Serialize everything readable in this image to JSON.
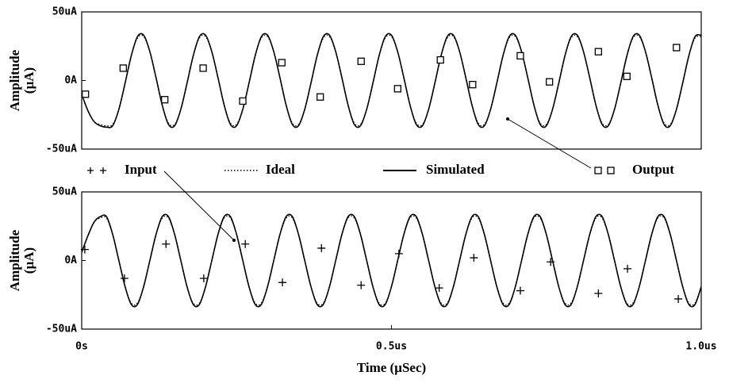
{
  "chart_data": [
    {
      "type": "line",
      "ylabel": [
        "Amplitude",
        "(µA)"
      ],
      "xlim": [
        0,
        1
      ],
      "ylim": [
        -50,
        50
      ],
      "yticks": [
        {
          "value": 50,
          "label": "50uA"
        },
        {
          "value": 0,
          "label": "0A"
        },
        {
          "value": -50,
          "label": "-50uA"
        }
      ],
      "x": [
        0,
        0.01,
        0.02,
        0.03,
        0.04,
        0.05,
        0.06,
        0.07,
        0.08,
        0.09,
        0.1,
        0.11,
        0.12,
        0.13,
        0.14,
        0.15,
        0.16,
        0.17,
        0.18,
        0.19,
        0.2,
        0.21,
        0.22,
        0.23,
        0.24,
        0.25,
        0.26,
        0.27,
        0.28,
        0.29,
        0.3,
        0.31,
        0.32,
        0.33,
        0.34,
        0.35,
        0.36,
        0.37,
        0.38,
        0.39,
        0.4,
        0.41,
        0.42,
        0.43,
        0.44,
        0.45,
        0.46,
        0.47,
        0.48,
        0.49,
        0.5,
        0.51,
        0.52,
        0.53,
        0.54,
        0.55,
        0.56,
        0.57,
        0.58,
        0.59,
        0.6,
        0.61,
        0.62,
        0.63,
        0.64,
        0.65,
        0.66,
        0.67,
        0.68,
        0.69,
        0.7,
        0.71,
        0.72,
        0.73,
        0.74,
        0.75,
        0.76,
        0.77,
        0.78,
        0.79,
        0.8,
        0.81,
        0.82,
        0.83,
        0.84,
        0.85,
        0.86,
        0.87,
        0.88,
        0.89,
        0.9,
        0.91,
        0.92,
        0.93,
        0.94,
        0.95,
        0.96,
        0.97,
        0.98,
        0.99,
        1
      ],
      "series": [
        {
          "name": "Ideal",
          "type": "line",
          "style": "dotted",
          "color": "#000000",
          "values": [
            -10,
            -22,
            -30,
            -32,
            -33,
            -32,
            -21,
            -2,
            18,
            31,
            32,
            21,
            2,
            -18,
            -31,
            -32,
            -21,
            -2,
            18,
            31,
            32,
            21,
            2,
            -18,
            -31,
            -32,
            -21,
            -2,
            18,
            31,
            32,
            21,
            2,
            -18,
            -31,
            -32,
            -21,
            -2,
            18,
            31,
            32,
            21,
            2,
            -18,
            -31,
            -32,
            -21,
            -2,
            18,
            31,
            32,
            21,
            2,
            -18,
            -31,
            -32,
            -21,
            -2,
            18,
            31,
            32,
            21,
            2,
            -18,
            -31,
            -32,
            -21,
            -2,
            18,
            31,
            32,
            21,
            2,
            -18,
            -31,
            -32,
            -21,
            -2,
            18,
            31,
            32,
            21,
            2,
            -18,
            -31,
            -32,
            -21,
            -2,
            18,
            31,
            32,
            21,
            2,
            -18,
            -31,
            -32,
            -21,
            -2,
            18,
            31,
            32
          ]
        },
        {
          "name": "Simulated",
          "type": "line",
          "style": "solid",
          "color": "#000000",
          "values": [
            -10,
            -22,
            -30,
            -33,
            -34,
            -33,
            -21,
            -2,
            18,
            32,
            33,
            21,
            2,
            -18,
            -32,
            -33,
            -21,
            -2,
            18,
            32,
            33,
            21,
            2,
            -18,
            -32,
            -33,
            -21,
            -2,
            18,
            32,
            33,
            21,
            2,
            -18,
            -32,
            -33,
            -21,
            -2,
            18,
            32,
            33,
            21,
            2,
            -18,
            -32,
            -33,
            -21,
            -2,
            18,
            32,
            33,
            21,
            2,
            -18,
            -32,
            -33,
            -21,
            -2,
            18,
            32,
            33,
            21,
            2,
            -18,
            -32,
            -33,
            -21,
            -2,
            18,
            32,
            33,
            21,
            2,
            -18,
            -32,
            -33,
            -21,
            -2,
            18,
            32,
            33,
            21,
            2,
            -18,
            -32,
            -33,
            -21,
            -2,
            18,
            32,
            33,
            21,
            2,
            -18,
            -32,
            -33,
            -21,
            -2,
            18,
            32,
            33
          ]
        },
        {
          "name": "Output",
          "type": "scatter",
          "marker": "square",
          "color": "#000000",
          "x": [
            0.006,
            0.067,
            0.134,
            0.196,
            0.26,
            0.323,
            0.385,
            0.451,
            0.51,
            0.579,
            0.631,
            0.708,
            0.755,
            0.834,
            0.88,
            0.96
          ],
          "values": [
            -10,
            9,
            -14,
            9,
            -15,
            13,
            -12,
            14,
            -6,
            15,
            -3,
            18,
            -1,
            21,
            3,
            24
          ]
        }
      ]
    },
    {
      "type": "line",
      "ylabel": [
        "Amplitude",
        "(µA)"
      ],
      "xlabel": "Time (µSec)",
      "xlim": [
        0,
        1
      ],
      "ylim": [
        -50,
        50
      ],
      "xticks": [
        {
          "value": 0,
          "label": "0s"
        },
        {
          "value": 0.5,
          "label": "0.5us"
        },
        {
          "value": 1,
          "label": "1.0us"
        }
      ],
      "yticks": [
        {
          "value": 50,
          "label": "50uA"
        },
        {
          "value": 0,
          "label": "0A"
        },
        {
          "value": -50,
          "label": "-50uA"
        }
      ],
      "x": [
        0,
        0.01,
        0.02,
        0.03,
        0.04,
        0.05,
        0.06,
        0.07,
        0.08,
        0.09,
        0.1,
        0.11,
        0.12,
        0.13,
        0.14,
        0.15,
        0.16,
        0.17,
        0.18,
        0.19,
        0.2,
        0.21,
        0.22,
        0.23,
        0.24,
        0.25,
        0.26,
        0.27,
        0.28,
        0.29,
        0.3,
        0.31,
        0.32,
        0.33,
        0.34,
        0.35,
        0.36,
        0.37,
        0.38,
        0.39,
        0.4,
        0.41,
        0.42,
        0.43,
        0.44,
        0.45,
        0.46,
        0.47,
        0.48,
        0.49,
        0.5,
        0.51,
        0.52,
        0.53,
        0.54,
        0.55,
        0.56,
        0.57,
        0.58,
        0.59,
        0.6,
        0.61,
        0.62,
        0.63,
        0.64,
        0.65,
        0.66,
        0.67,
        0.68,
        0.69,
        0.7,
        0.71,
        0.72,
        0.73,
        0.74,
        0.75,
        0.76,
        0.77,
        0.78,
        0.79,
        0.8,
        0.81,
        0.82,
        0.83,
        0.84,
        0.85,
        0.86,
        0.87,
        0.88,
        0.89,
        0.9,
        0.91,
        0.92,
        0.93,
        0.94,
        0.95,
        0.96,
        0.97,
        0.98,
        0.99,
        1
      ],
      "series": [
        {
          "type": "line",
          "style": "dotted",
          "color": "#000000",
          "values": [
            6,
            18,
            28,
            31,
            31,
            19,
            0,
            -19,
            -31,
            -31,
            -19,
            0,
            19,
            31,
            31,
            19,
            0,
            -19,
            -31,
            -31,
            -19,
            0,
            19,
            31,
            31,
            19,
            0,
            -19,
            -31,
            -31,
            -19,
            0,
            19,
            31,
            31,
            19,
            0,
            -19,
            -31,
            -31,
            -19,
            0,
            19,
            31,
            31,
            19,
            0,
            -19,
            -31,
            -31,
            -19,
            0,
            19,
            31,
            31,
            19,
            0,
            -19,
            -31,
            -31,
            -19,
            0,
            19,
            31,
            31,
            19,
            0,
            -19,
            -31,
            -31,
            -19,
            0,
            19,
            31,
            31,
            19,
            0,
            -19,
            -31,
            -31,
            -19,
            0,
            19,
            31,
            31,
            19,
            0,
            -19,
            -31,
            -31,
            -19,
            0,
            19,
            31,
            31,
            19,
            0,
            -19,
            -31,
            -31,
            -19
          ]
        },
        {
          "type": "line",
          "style": "solid",
          "color": "#000000",
          "values": [
            6,
            18,
            28,
            32,
            32,
            19,
            0,
            -19,
            -32,
            -32,
            -19,
            0,
            19,
            32,
            32,
            19,
            0,
            -19,
            -32,
            -32,
            -19,
            0,
            19,
            32,
            32,
            19,
            0,
            -19,
            -32,
            -32,
            -19,
            0,
            19,
            32,
            32,
            19,
            0,
            -19,
            -32,
            -32,
            -19,
            0,
            19,
            32,
            32,
            19,
            0,
            -19,
            -32,
            -32,
            -19,
            0,
            19,
            32,
            32,
            19,
            0,
            -19,
            -32,
            -32,
            -19,
            0,
            19,
            32,
            32,
            19,
            0,
            -19,
            -32,
            -32,
            -19,
            0,
            19,
            32,
            32,
            19,
            0,
            -19,
            -32,
            -32,
            -19,
            0,
            19,
            32,
            32,
            19,
            0,
            -19,
            -32,
            -32,
            -19,
            0,
            19,
            32,
            32,
            19,
            0,
            -19,
            -32,
            -32,
            -19
          ]
        },
        {
          "name": "Input",
          "type": "scatter",
          "marker": "plus",
          "color": "#000000",
          "x": [
            0.005,
            0.069,
            0.136,
            0.197,
            0.264,
            0.324,
            0.387,
            0.451,
            0.512,
            0.577,
            0.633,
            0.708,
            0.757,
            0.834,
            0.881,
            0.963
          ],
          "values": [
            8,
            -13,
            12,
            -13,
            12,
            -16,
            9,
            -18,
            5,
            -20,
            2,
            -22,
            -1,
            -24,
            -6,
            -28
          ]
        }
      ]
    }
  ]
}
